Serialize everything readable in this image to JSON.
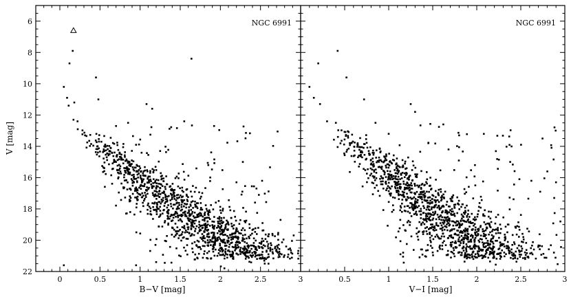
{
  "chart_data": [
    {
      "type": "scatter",
      "title": "NGC 6991",
      "xlabel": "B−V [mag]",
      "ylabel": "V [mag]",
      "xlim": [
        -0.3,
        3.0
      ],
      "ylim": [
        22,
        5
      ],
      "y_inverted": true,
      "xticks": [
        0,
        0.5,
        1,
        1.5,
        2,
        2.5,
        3
      ],
      "xtick_labels": [
        "0",
        "0.5",
        "1",
        "1.5",
        "2",
        "2.5",
        "3"
      ],
      "yticks": [
        6,
        8,
        10,
        12,
        14,
        16,
        18,
        20,
        22
      ],
      "ytick_labels": [
        "6",
        "8",
        "10",
        "12",
        "14",
        "16",
        "18",
        "20",
        "22"
      ],
      "grid": false,
      "highlight_point": {
        "x": 0.17,
        "y": 6.6,
        "marker": "open-triangle"
      },
      "cloud": {
        "seed": 7,
        "n_main": 1200,
        "n_giants": 120
      },
      "points": [
        [
          0.12,
          8.7
        ],
        [
          0.16,
          7.9
        ],
        [
          0.45,
          9.6
        ],
        [
          0.48,
          11.0
        ],
        [
          0.05,
          10.2
        ],
        [
          0.09,
          10.9
        ],
        [
          0.18,
          11.2
        ],
        [
          0.11,
          11.4
        ],
        [
          0.17,
          12.3
        ],
        [
          0.22,
          12.4
        ],
        [
          1.64,
          8.4
        ],
        [
          1.08,
          11.3
        ],
        [
          1.15,
          11.6
        ],
        [
          1.55,
          12.4
        ],
        [
          1.85,
          15.2
        ],
        [
          2.28,
          15.0
        ],
        [
          2.45,
          16.7
        ],
        [
          2.52,
          16.2
        ],
        [
          2.2,
          16.3
        ],
        [
          2.48,
          17.1
        ],
        [
          2.75,
          18.7
        ],
        [
          2.82,
          20.4
        ],
        [
          2.7,
          20.6
        ],
        [
          2.6,
          21.5
        ],
        [
          2.05,
          21.8
        ],
        [
          0.05,
          21.6
        ],
        [
          0.95,
          21.6
        ],
        [
          1.2,
          21.4
        ],
        [
          0.7,
          12.7
        ],
        [
          0.85,
          12.5
        ],
        [
          0.95,
          13.9
        ],
        [
          1.25,
          14.3
        ]
      ]
    },
    {
      "type": "scatter",
      "title": "NGC 6991",
      "xlabel": "V−I [mag]",
      "ylabel": "",
      "xlim": [
        0.0,
        3.0
      ],
      "ylim": [
        22,
        5
      ],
      "y_inverted": true,
      "xticks": [
        0.5,
        1,
        1.5,
        2,
        2.5,
        3
      ],
      "xtick_labels": [
        "0.5",
        "1",
        "1.5",
        "2",
        "2.5",
        "3"
      ],
      "yticks": [
        6,
        8,
        10,
        12,
        14,
        16,
        18,
        20,
        22
      ],
      "grid": false,
      "cloud": {
        "seed": 13,
        "n_main": 1200,
        "n_giants": 120
      },
      "points": [
        [
          0.2,
          8.7
        ],
        [
          0.42,
          7.9
        ],
        [
          0.52,
          9.6
        ],
        [
          0.72,
          11.0
        ],
        [
          0.1,
          10.2
        ],
        [
          0.15,
          10.9
        ],
        [
          0.22,
          11.3
        ],
        [
          0.3,
          12.4
        ],
        [
          1.25,
          11.3
        ],
        [
          1.3,
          11.8
        ],
        [
          1.62,
          12.6
        ],
        [
          1.8,
          13.3
        ],
        [
          1.98,
          15.2
        ],
        [
          2.38,
          15.0
        ],
        [
          2.62,
          16.2
        ],
        [
          2.9,
          16.3
        ],
        [
          2.88,
          17.3
        ],
        [
          2.72,
          16.9
        ],
        [
          2.95,
          18.8
        ],
        [
          2.55,
          21.2
        ],
        [
          0.4,
          12.5
        ],
        [
          0.85,
          12.5
        ],
        [
          1.0,
          13.2
        ],
        [
          1.45,
          13.8
        ],
        [
          1.68,
          14.2
        ]
      ]
    }
  ]
}
